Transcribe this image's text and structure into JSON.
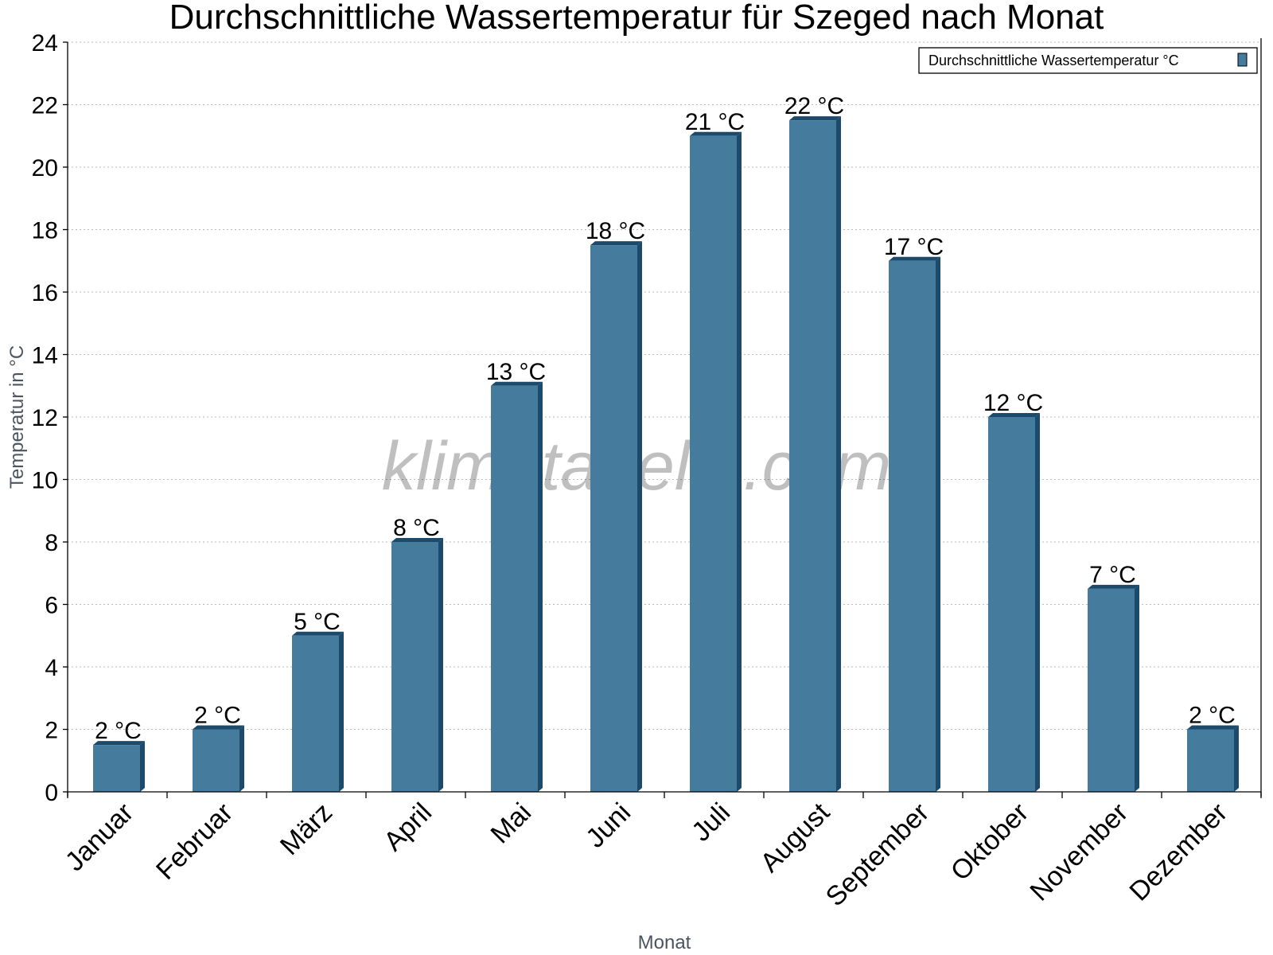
{
  "chart_data": {
    "type": "bar",
    "title": "Durchschnittliche Wassertemperatur für Szeged nach Monat",
    "xlabel": "Monat",
    "ylabel": "Temperatur in °C",
    "ylim": [
      0,
      24
    ],
    "yticks": [
      0,
      2,
      4,
      6,
      8,
      10,
      12,
      14,
      16,
      18,
      20,
      22,
      24
    ],
    "grid": true,
    "legend_position": "top-right",
    "categories": [
      "Januar",
      "Februar",
      "März",
      "April",
      "Mai",
      "Juni",
      "Juli",
      "August",
      "September",
      "Oktober",
      "November",
      "Dezember"
    ],
    "series": [
      {
        "name": "Durchschnittliche Wassertemperatur °C",
        "values": [
          1.5,
          2,
          5,
          8,
          13,
          17.5,
          21,
          21.5,
          17,
          12,
          6.5,
          2
        ],
        "labels": [
          "2 °C",
          "2 °C",
          "5 °C",
          "8 °C",
          "13 °C",
          "18 °C",
          "21 °C",
          "22 °C",
          "17 °C",
          "12 °C",
          "7 °C",
          "2 °C"
        ],
        "color": "#457b9d",
        "side_color": "#1b4a6b"
      }
    ],
    "watermark": "klimatabelle.com"
  }
}
